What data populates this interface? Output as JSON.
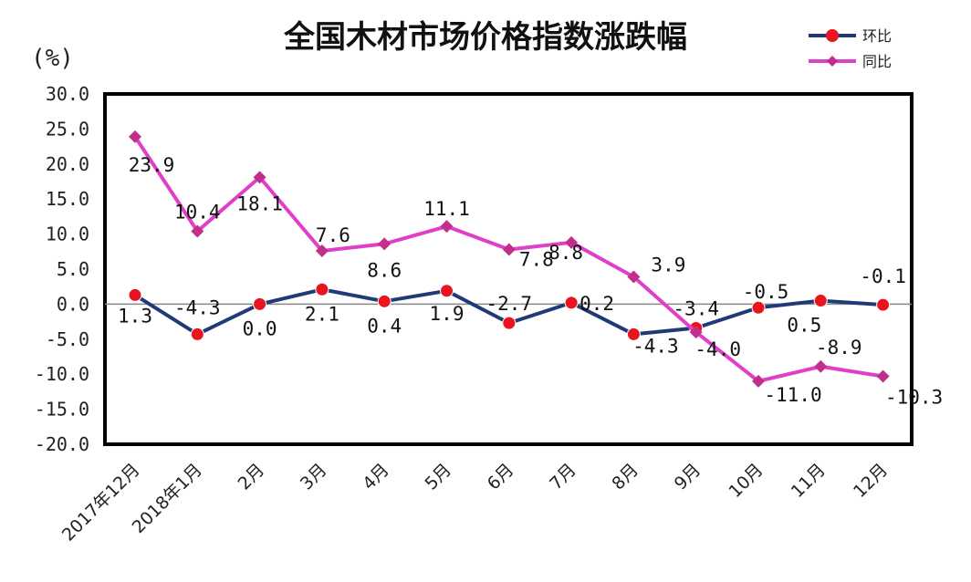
{
  "chart_data": {
    "type": "line",
    "title": "全国木材市场价格指数涨跌幅",
    "unit_label": "(%)",
    "xlabel": "",
    "ylabel": "",
    "ylim": [
      -20,
      30
    ],
    "yticks": [
      "30.0",
      "25.0",
      "20.0",
      "15.0",
      "10.0",
      "5.0",
      "0.0",
      "-5.0",
      "-10.0",
      "-15.0",
      "-20.0"
    ],
    "categories": [
      "2017年12月",
      "2018年1月",
      "2月",
      "3月",
      "4月",
      "5月",
      "6月",
      "7月",
      "8月",
      "9月",
      "10月",
      "11月",
      "12月"
    ],
    "series": [
      {
        "name": "环比",
        "color": "#1f3a78",
        "marker_color": "#e8141e",
        "marker": "circle",
        "values": [
          1.3,
          -4.3,
          0.0,
          2.1,
          0.4,
          1.9,
          -2.7,
          0.2,
          -4.3,
          -3.4,
          -0.5,
          0.5,
          -0.1
        ],
        "labels": [
          "1.3",
          "-4.3",
          "0.0",
          "2.1",
          "0.4",
          "1.9",
          "-2.7",
          "0.2",
          "-4.3",
          "-3.4",
          "-0.5",
          "0.5",
          "-0.1"
        ]
      },
      {
        "name": "同比",
        "color": "#e040c8",
        "marker_color": "#c0308a",
        "marker": "diamond",
        "values": [
          23.9,
          10.4,
          18.1,
          7.6,
          8.6,
          11.1,
          7.8,
          8.8,
          3.9,
          -4.0,
          -11.0,
          -8.9,
          -10.3
        ],
        "labels": [
          "23.9",
          "10.4",
          "18.1",
          "7.6",
          "8.6",
          "11.1",
          "7.8",
          "8.8",
          "3.9",
          "-4.0",
          "-11.0",
          "-8.9",
          "-10.3"
        ]
      }
    ],
    "legend_position": "top-right",
    "grid": false
  }
}
